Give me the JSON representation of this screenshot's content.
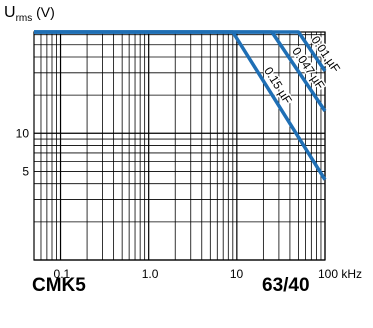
{
  "chart_data": {
    "type": "line",
    "ylabel_main": "U",
    "ylabel_sub": "rms",
    "ylabel_unit": "(V)",
    "xlabel": "",
    "x_scale": "log",
    "y_scale": "log",
    "xlim": [
      0.05,
      100
    ],
    "ylim": [
      1,
      63
    ],
    "x_ticks": [
      {
        "value": 0.1,
        "label": "0.1"
      },
      {
        "value": 1,
        "label": "1.0"
      },
      {
        "value": 10,
        "label": "10"
      },
      {
        "value": 100,
        "label": "100 kHz"
      }
    ],
    "y_ticks": [
      {
        "value": 10,
        "label": "10"
      },
      {
        "value": 5,
        "label": "5"
      }
    ],
    "grid": true,
    "series": [
      {
        "name": "0.15 µF",
        "points": [
          [
            0.05,
            63
          ],
          [
            9,
            63
          ],
          [
            100,
            4.3
          ]
        ]
      },
      {
        "name": "0.047 µF",
        "points": [
          [
            0.05,
            63
          ],
          [
            25,
            63
          ],
          [
            100,
            15
          ]
        ]
      },
      {
        "name": "0.01 µF",
        "points": [
          [
            0.05,
            63
          ],
          [
            50,
            63
          ],
          [
            100,
            31
          ]
        ]
      }
    ],
    "series_color": "#1f6fb5"
  },
  "footer": {
    "left": "CMK5",
    "right": "63/40"
  }
}
